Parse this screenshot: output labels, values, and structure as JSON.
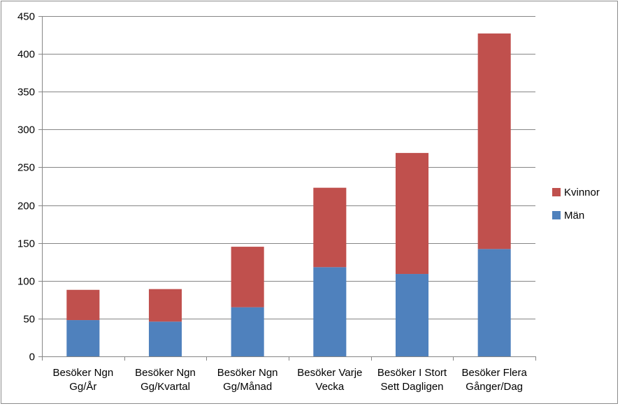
{
  "chart_data": {
    "type": "bar",
    "stacked": true,
    "title": "",
    "xlabel": "",
    "ylabel": "",
    "ylim": [
      0,
      450
    ],
    "yticks": [
      0,
      50,
      100,
      150,
      200,
      250,
      300,
      350,
      400,
      450
    ],
    "grid": true,
    "legend_position": "right",
    "categories": [
      [
        "Besöker Ngn",
        "Gg/År"
      ],
      [
        "Besöker Ngn",
        "Gg/Kvartal"
      ],
      [
        "Besöker Ngn",
        "Gg/Månad"
      ],
      [
        "Besöker Varje",
        "Vecka"
      ],
      [
        "Besöker I Stort",
        "Sett Dagligen"
      ],
      [
        "Besöker Flera",
        "Gånger/Dag"
      ]
    ],
    "series": [
      {
        "name": "Män",
        "color": "#4f81bd",
        "values": [
          48,
          46,
          65,
          118,
          109,
          142
        ]
      },
      {
        "name": "Kvinnor",
        "color": "#c0504d",
        "values": [
          40,
          43,
          80,
          105,
          160,
          285
        ]
      }
    ],
    "legend_order": [
      "Kvinnor",
      "Män"
    ]
  }
}
